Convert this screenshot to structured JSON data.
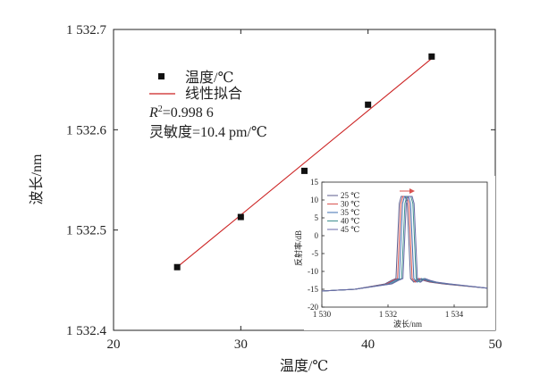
{
  "chart_data": [
    {
      "type": "scatter",
      "xlabel": "温度/℃",
      "ylabel": "波长/nm",
      "xlim": [
        20,
        50
      ],
      "ylim": [
        1532.4,
        1532.7
      ],
      "x_ticks": [
        "20",
        "30",
        "40",
        "50"
      ],
      "y_ticks": [
        "1 532.4",
        "1 532.5",
        "1 532.6",
        "1 532.7"
      ],
      "series": [
        {
          "name": "温度/℃",
          "x": [
            25,
            30,
            35,
            40,
            45
          ],
          "y": [
            1532.463,
            1532.513,
            1532.559,
            1532.625,
            1532.673
          ],
          "color": "#111111",
          "marker": "square"
        },
        {
          "name": "线性拟合",
          "type": "line",
          "x": [
            25,
            45
          ],
          "y": [
            1532.463,
            1532.671
          ],
          "color": "#cc2222"
        }
      ],
      "annotations": [
        "R²=0.998 6",
        "灵敏度=10.4 pm/℃"
      ],
      "r2_label": "R",
      "r2_sup": "2",
      "r2_value": "=0.998 6",
      "sensitivity": "灵敏度=10.4 pm/℃",
      "legend_position": "top-left",
      "grid": false
    },
    {
      "type": "line",
      "inset": true,
      "xlabel": "波长/nm",
      "ylabel": "反射率/dB",
      "xlim": [
        1530,
        1535
      ],
      "ylim": [
        -20,
        15
      ],
      "x_ticks": [
        "1 530",
        "1 532",
        "1 534"
      ],
      "y_ticks": [
        "15",
        "10",
        "5",
        "0",
        "-5",
        "-10",
        "-15",
        "-20"
      ],
      "series": [
        {
          "name": "25 ℃",
          "peak": 1532.46,
          "color": "#5b5b8c"
        },
        {
          "name": "30 ℃",
          "peak": 1532.51,
          "color": "#d9534f"
        },
        {
          "name": "35 ℃",
          "peak": 1532.56,
          "color": "#3f6fb0"
        },
        {
          "name": "40 ℃",
          "peak": 1532.63,
          "color": "#3f8f8f"
        },
        {
          "name": "45 ℃",
          "peak": 1532.67,
          "color": "#6a6aa8"
        }
      ],
      "peak_level": 11,
      "floor_level": -15,
      "grid": false
    }
  ]
}
